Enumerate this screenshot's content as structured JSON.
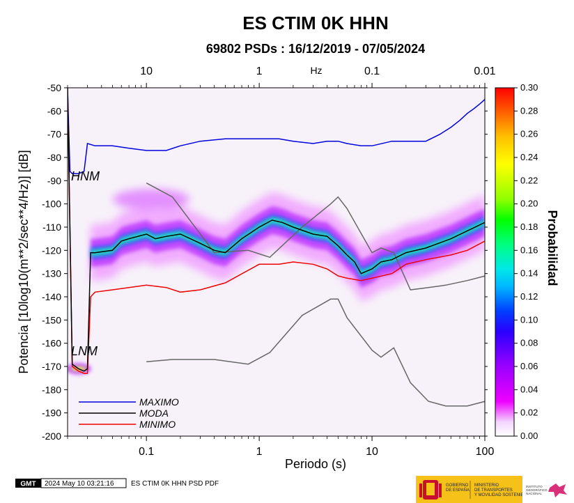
{
  "chart_data": {
    "type": "heatmap",
    "title": "ES CTIM 0K HHN",
    "subtitle": "69802 PSDs : 16/12/2019 - 07/05/2024",
    "xlabel": "Periodo (s)",
    "ylabel": "Potencia [10log10(m**2/sec**4/Hz)] [dB]",
    "top_axis_label": "Hz",
    "x_scale": "log",
    "xlim": [
      0.02,
      100
    ],
    "ylim": [
      -200,
      -50
    ],
    "x_ticks": [
      "0.1",
      "1",
      "10",
      "100"
    ],
    "top_ticks": [
      "10",
      "1",
      "0.1",
      "0.01"
    ],
    "y_ticks": [
      "-50",
      "-60",
      "-70",
      "-80",
      "-90",
      "-100",
      "-110",
      "-120",
      "-130",
      "-140",
      "-150",
      "-160",
      "-170",
      "-180",
      "-190",
      "-200"
    ],
    "colorbar": {
      "label": "Probabilidad",
      "range": [
        0.0,
        0.3
      ],
      "ticks": [
        "0.00",
        "0.02",
        "0.04",
        "0.06",
        "0.08",
        "0.10",
        "0.12",
        "0.14",
        "0.16",
        "0.18",
        "0.20",
        "0.22",
        "0.24",
        "0.26",
        "0.28",
        "0.30"
      ]
    },
    "series": [
      {
        "name": "MAXIMO",
        "color": "#0000dd",
        "x": [
          0.02,
          0.021,
          0.022,
          0.025,
          0.028,
          0.03,
          0.035,
          0.05,
          0.07,
          0.1,
          0.15,
          0.2,
          0.3,
          0.5,
          1,
          1.5,
          2,
          3,
          4,
          5,
          6,
          8,
          10,
          15,
          20,
          30,
          40,
          50,
          60,
          70,
          80,
          90,
          100
        ],
        "y": [
          -50,
          -86,
          -87,
          -87,
          -86,
          -74,
          -75,
          -75,
          -76,
          -77,
          -77,
          -75,
          -73,
          -72,
          -72,
          -72,
          -73,
          -74,
          -73,
          -73,
          -74,
          -75,
          -75,
          -73,
          -73,
          -73,
          -70,
          -67,
          -64,
          -61,
          -59,
          -57,
          -55
        ]
      },
      {
        "name": "MODA",
        "color": "#000000",
        "x": [
          0.02,
          0.022,
          0.025,
          0.028,
          0.03,
          0.032,
          0.035,
          0.05,
          0.06,
          0.07,
          0.1,
          0.12,
          0.15,
          0.2,
          0.3,
          0.4,
          0.5,
          0.7,
          1,
          1.3,
          1.6,
          2,
          3,
          4,
          5,
          6,
          7,
          8,
          10,
          12,
          15,
          20,
          30,
          50,
          100
        ],
        "y": [
          -50,
          -169,
          -171,
          -172,
          -171,
          -121,
          -121,
          -120,
          -116,
          -115,
          -113,
          -115,
          -114,
          -113,
          -117,
          -120,
          -121,
          -115,
          -110,
          -107,
          -108,
          -110,
          -113,
          -114,
          -118,
          -122,
          -125,
          -130,
          -128,
          -125,
          -124,
          -121,
          -119,
          -115,
          -108
        ]
      },
      {
        "name": "MINIMO",
        "color": "#ee0000",
        "x": [
          0.02,
          0.022,
          0.025,
          0.028,
          0.03,
          0.032,
          0.035,
          0.05,
          0.07,
          0.1,
          0.15,
          0.2,
          0.3,
          0.5,
          1,
          1.5,
          2,
          3,
          4,
          5,
          6,
          8,
          10,
          15,
          20,
          30,
          50,
          70,
          100
        ],
        "y": [
          -50,
          -170,
          -172,
          -173,
          -173,
          -140,
          -138,
          -137,
          -136,
          -135,
          -136,
          -138,
          -137,
          -134,
          -126,
          -126,
          -125,
          -126,
          -128,
          -131,
          -132,
          -133,
          -132,
          -130,
          -126,
          -124,
          -122,
          -120,
          -116
        ]
      }
    ],
    "reference_models": [
      {
        "name": "HNM",
        "color": "#555555",
        "x": [
          0.1,
          0.17,
          0.4,
          0.8,
          1.24,
          2.4,
          4.3,
          5,
          6,
          10,
          12,
          15.6,
          21.9,
          31.6,
          45,
          70,
          101
        ],
        "y": [
          -91,
          -97,
          -121,
          -120,
          -123,
          -110,
          -100,
          -97,
          -102,
          -121,
          -119,
          -121,
          -137,
          -136,
          -135,
          -133,
          -131
        ]
      },
      {
        "name": "LNM",
        "color": "#555555",
        "x": [
          0.1,
          0.17,
          0.4,
          0.8,
          1.24,
          2.4,
          4.3,
          5,
          6,
          10,
          12,
          15.6,
          21.9,
          31.6,
          45,
          70,
          101
        ],
        "y": [
          -168,
          -167,
          -167,
          -169,
          -164,
          -148,
          -141,
          -141,
          -149,
          -163,
          -166,
          -162,
          -177,
          -185,
          -187,
          -187,
          -185
        ]
      }
    ],
    "legend_placement": "bottom-left"
  },
  "footer": {
    "logo_text": "GMT",
    "timestamp": "2024 May 10 03:21:16",
    "caption": "ES CTIM 0K HHN PSD PDF",
    "gov_line1": "GOBIERNO",
    "gov_line2": "DE ESPAÑA",
    "ministry_line1": "MINISTERIO",
    "ministry_line2": "DE TRANSPORTES",
    "ministry_line3": "Y MOVILIDAD SOSTENIBLE",
    "ign_line1": "INSTITUTO",
    "ign_line2": "GEOGRÁFICO",
    "ign_line3": "NACIONAL"
  }
}
